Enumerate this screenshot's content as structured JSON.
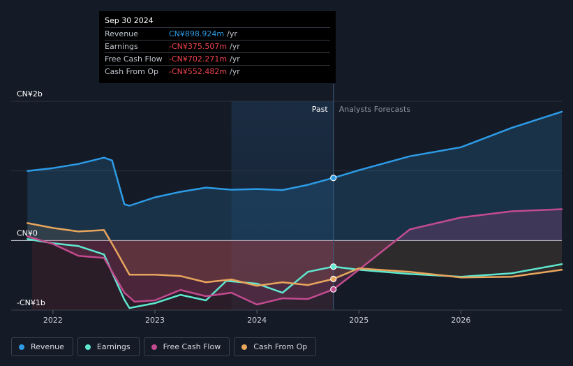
{
  "tooltip": {
    "date": "Sep 30 2024",
    "rows": [
      {
        "label": "Revenue",
        "value": "CN¥898.924m",
        "unit": "/yr",
        "color": "#2d9be6"
      },
      {
        "label": "Earnings",
        "value": "-CN¥375.507m",
        "unit": "/yr",
        "color": "#f0454f"
      },
      {
        "label": "Free Cash Flow",
        "value": "-CN¥702.271m",
        "unit": "/yr",
        "color": "#f0454f"
      },
      {
        "label": "Cash From Op",
        "value": "-CN¥552.482m",
        "unit": "/yr",
        "color": "#f0454f"
      }
    ]
  },
  "legend": [
    {
      "label": "Revenue",
      "color": "#2d9be6"
    },
    {
      "label": "Earnings",
      "color": "#5ee8cf"
    },
    {
      "label": "Free Cash Flow",
      "color": "#c24b8f"
    },
    {
      "label": "Cash From Op",
      "color": "#e8a55c"
    }
  ],
  "chart_data": {
    "type": "line",
    "y_tick_labels": [
      "CN¥2b",
      "CN¥0",
      "-CN¥1b"
    ],
    "y_ticks": [
      2000,
      0,
      -1000
    ],
    "ylim": [
      -1000,
      2000
    ],
    "x_tick_labels": [
      "2022",
      "2023",
      "2024",
      "2025",
      "2026"
    ],
    "x_ticks": [
      2022,
      2023,
      2024,
      2025,
      2026
    ],
    "xlim": [
      2021.59,
      2026.99
    ],
    "past_label": "Past",
    "forecast_label": "Analysts Forecasts",
    "highlight_range": [
      2023.75,
      2024.75
    ],
    "divider_x": 2024.75,
    "series": [
      {
        "name": "Revenue",
        "color": "#2d9be6",
        "fill": "#2d9be6",
        "marker_x": 2024.75,
        "points": [
          [
            2021.75,
            1000
          ],
          [
            2022,
            1040
          ],
          [
            2022.25,
            1100
          ],
          [
            2022.5,
            1190
          ],
          [
            2022.58,
            1150
          ],
          [
            2022.7,
            520
          ],
          [
            2022.75,
            500
          ],
          [
            2023,
            620
          ],
          [
            2023.25,
            700
          ],
          [
            2023.5,
            760
          ],
          [
            2023.75,
            730
          ],
          [
            2024,
            740
          ],
          [
            2024.25,
            725
          ],
          [
            2024.5,
            800
          ],
          [
            2024.75,
            899
          ],
          [
            2025,
            1010
          ],
          [
            2025.5,
            1210
          ],
          [
            2026,
            1340
          ],
          [
            2026.5,
            1620
          ],
          [
            2026.99,
            1850
          ]
        ]
      },
      {
        "name": "Earnings",
        "color": "#5ee8cf",
        "fill": null,
        "marker_x": 2024.75,
        "points": [
          [
            2021.75,
            20
          ],
          [
            2022,
            -40
          ],
          [
            2022.25,
            -80
          ],
          [
            2022.5,
            -200
          ],
          [
            2022.7,
            -850
          ],
          [
            2022.75,
            -970
          ],
          [
            2023,
            -900
          ],
          [
            2023.25,
            -780
          ],
          [
            2023.5,
            -860
          ],
          [
            2023.7,
            -580
          ],
          [
            2023.85,
            -600
          ],
          [
            2024,
            -620
          ],
          [
            2024.25,
            -750
          ],
          [
            2024.5,
            -450
          ],
          [
            2024.75,
            -375
          ],
          [
            2025,
            -420
          ],
          [
            2025.5,
            -480
          ],
          [
            2026,
            -520
          ],
          [
            2026.5,
            -470
          ],
          [
            2026.99,
            -340
          ]
        ]
      },
      {
        "name": "Free Cash Flow",
        "color": "#c24b8f",
        "fill": "#c24b8f",
        "marker_x": 2024.75,
        "points": [
          [
            2021.75,
            60
          ],
          [
            2022,
            -50
          ],
          [
            2022.25,
            -220
          ],
          [
            2022.5,
            -250
          ],
          [
            2022.7,
            -750
          ],
          [
            2022.8,
            -880
          ],
          [
            2023,
            -860
          ],
          [
            2023.25,
            -710
          ],
          [
            2023.5,
            -800
          ],
          [
            2023.75,
            -750
          ],
          [
            2024,
            -920
          ],
          [
            2024.25,
            -830
          ],
          [
            2024.5,
            -840
          ],
          [
            2024.75,
            -702
          ],
          [
            2025,
            -420
          ],
          [
            2025.5,
            160
          ],
          [
            2026,
            330
          ],
          [
            2026.5,
            420
          ],
          [
            2026.99,
            450
          ]
        ]
      },
      {
        "name": "Cash From Op",
        "color": "#e8a55c",
        "fill": "#e8a55c",
        "marker_x": 2024.75,
        "points": [
          [
            2021.75,
            250
          ],
          [
            2022,
            180
          ],
          [
            2022.25,
            130
          ],
          [
            2022.5,
            150
          ],
          [
            2022.6,
            -100
          ],
          [
            2022.75,
            -490
          ],
          [
            2023,
            -490
          ],
          [
            2023.25,
            -510
          ],
          [
            2023.5,
            -600
          ],
          [
            2023.75,
            -560
          ],
          [
            2024,
            -650
          ],
          [
            2024.25,
            -600
          ],
          [
            2024.5,
            -640
          ],
          [
            2024.75,
            -552
          ],
          [
            2025,
            -400
          ],
          [
            2025.5,
            -450
          ],
          [
            2026,
            -530
          ],
          [
            2026.5,
            -520
          ],
          [
            2026.99,
            -420
          ]
        ]
      }
    ]
  }
}
